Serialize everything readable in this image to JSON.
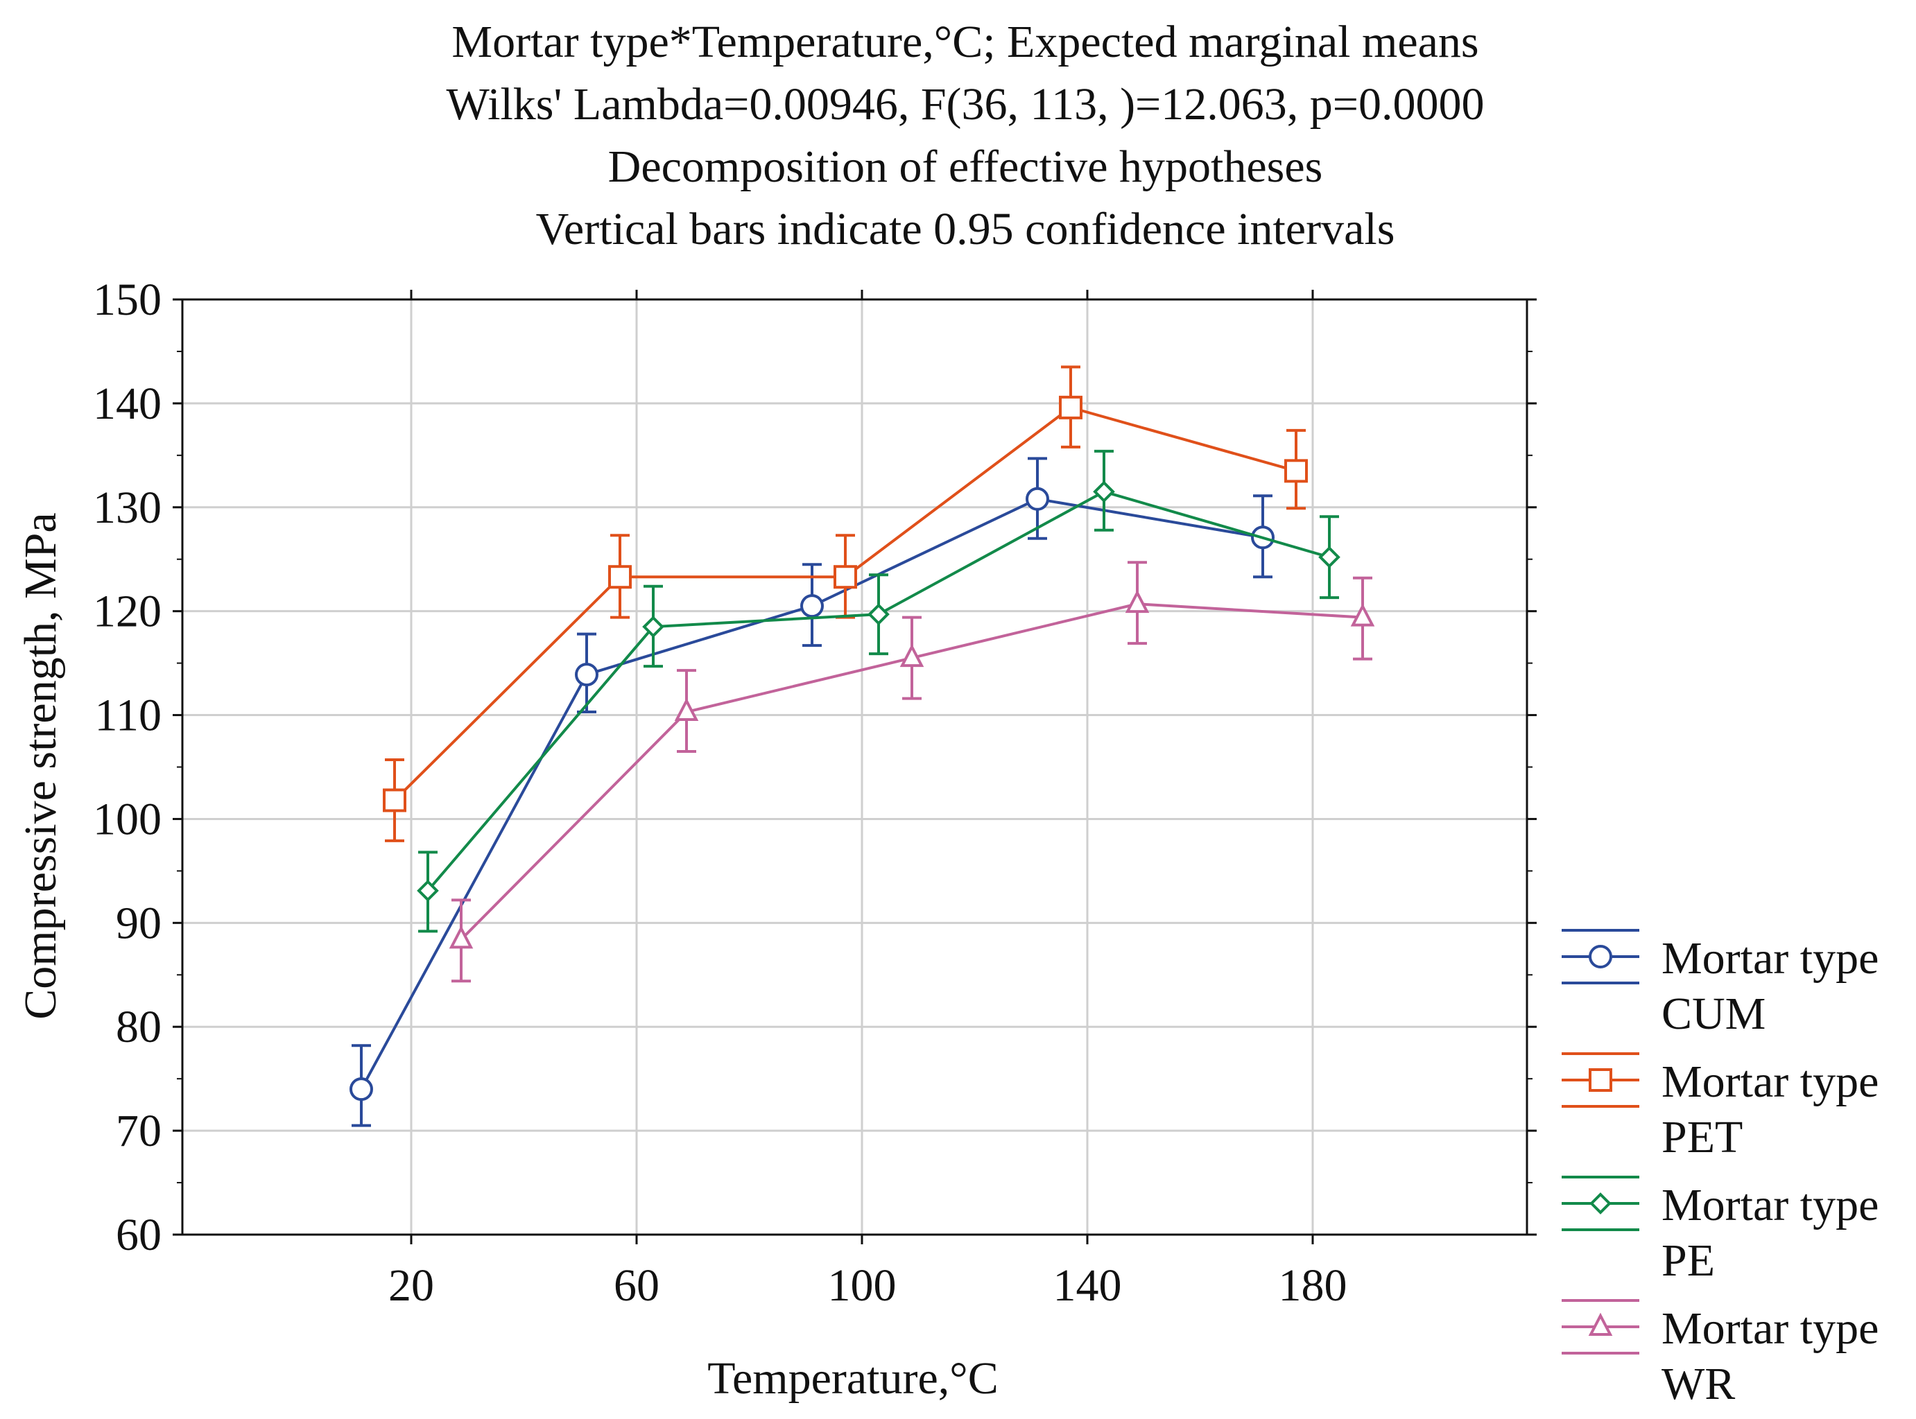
{
  "chart_data": {
    "type": "line",
    "title_lines": [
      "Mortar type*Temperature,°C; Expected marginal means",
      "Wilks' Lambda=0.00946, F(36, 113, )=12.063, p=0.0000",
      "Decomposition of effective hypotheses",
      "Vertical bars indicate 0.95 confidence intervals"
    ],
    "xlabel": "Temperature,°C",
    "ylabel": "Compressive strength, MPa",
    "ylim": [
      60,
      150
    ],
    "yticks": [
      "60",
      "70",
      "80",
      "90",
      "100",
      "110",
      "120",
      "130",
      "140",
      "150"
    ],
    "categories": [
      "20",
      "60",
      "100",
      "140",
      "180"
    ],
    "grid": true,
    "legend_position": "right",
    "series": [
      {
        "name": "Mortar type CUM",
        "legend_line1": "Mortar type",
        "legend_line2": "CUM",
        "marker": "circle",
        "color": "#2a4a9a",
        "values": [
          74.0,
          113.9,
          120.5,
          130.8,
          127.1
        ],
        "ci_low": [
          70.5,
          110.3,
          116.7,
          127.0,
          123.3
        ],
        "ci_high": [
          78.2,
          117.8,
          124.5,
          134.7,
          131.1
        ]
      },
      {
        "name": "Mortar type PET",
        "legend_line1": "Mortar type",
        "legend_line2": "PET",
        "marker": "square",
        "color": "#e0501a",
        "values": [
          101.8,
          123.3,
          123.3,
          139.6,
          133.5
        ],
        "ci_low": [
          97.9,
          119.4,
          119.4,
          135.8,
          129.9
        ],
        "ci_high": [
          105.7,
          127.3,
          127.3,
          143.5,
          137.4
        ]
      },
      {
        "name": "Mortar type PE",
        "legend_line1": "Mortar type",
        "legend_line2": "PE",
        "marker": "diamond",
        "color": "#128a4a",
        "values": [
          93.1,
          118.5,
          119.7,
          131.5,
          125.2
        ],
        "ci_low": [
          89.2,
          114.7,
          115.9,
          127.8,
          121.3
        ],
        "ci_high": [
          96.8,
          122.4,
          123.5,
          135.4,
          129.1
        ]
      },
      {
        "name": "Mortar type WR",
        "legend_line1": "Mortar type",
        "legend_line2": "WR",
        "marker": "triangle",
        "color": "#c2639a",
        "values": [
          88.4,
          110.3,
          115.5,
          120.7,
          119.4
        ],
        "ci_low": [
          84.4,
          106.5,
          111.6,
          116.9,
          115.4
        ],
        "ci_high": [
          92.2,
          114.3,
          119.4,
          124.7,
          123.2
        ]
      }
    ]
  }
}
